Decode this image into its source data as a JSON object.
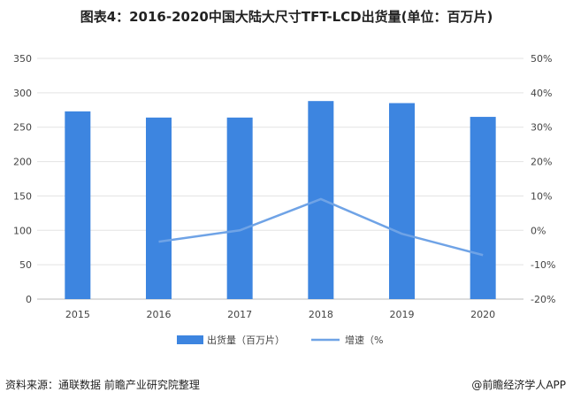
{
  "title": "图表4：2016-2020中国大陆大尺寸TFT-LCD出货量(单位：百万片)",
  "chart_data": {
    "type": "bar",
    "categories": [
      "2015",
      "2016",
      "2017",
      "2018",
      "2019",
      "2020"
    ],
    "series": [
      {
        "name": "出货量（百万片）",
        "type": "bar",
        "axis": "left",
        "values": [
          273,
          264,
          264,
          288,
          285,
          265
        ],
        "color": "#3d85e0"
      },
      {
        "name": "增速（%",
        "type": "line",
        "axis": "right",
        "values": [
          null,
          -3.3,
          0.0,
          9.1,
          -1.0,
          -7.2
        ],
        "color": "#6fa3e6"
      }
    ],
    "y_left": {
      "min": 0,
      "max": 350,
      "step": 50,
      "ticks": [
        "0",
        "50",
        "100",
        "150",
        "200",
        "250",
        "300",
        "350"
      ]
    },
    "y_right": {
      "min": -20,
      "max": 50,
      "step": 10,
      "ticks": [
        "-20%",
        "-10%",
        "0%",
        "10%",
        "20%",
        "30%",
        "40%",
        "50%"
      ]
    },
    "legend_position": "bottom",
    "grid": true
  },
  "footer": {
    "source": "资料来源：通联数据 前瞻产业研究院整理",
    "brand": "@前瞻经济学人APP"
  }
}
